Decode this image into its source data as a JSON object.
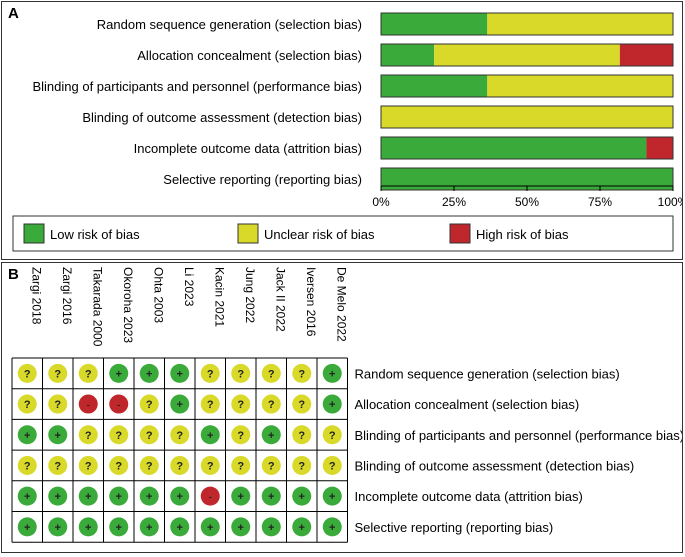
{
  "colors": {
    "low": "#3aaa3a",
    "unclear": "#d9d92a",
    "high": "#c0272d"
  },
  "chart_data": [
    {
      "type": "bar",
      "panel": "A",
      "orientation": "horizontal-stacked",
      "categories": [
        "Random sequence generation (selection bias)",
        "Allocation concealment (selection bias)",
        "Blinding of participants and personnel (performance bias)",
        "Blinding of outcome assessment (detection bias)",
        "Incomplete outcome data (attrition bias)",
        "Selective reporting (reporting bias)"
      ],
      "series": [
        {
          "name": "Low risk of bias",
          "key": "low",
          "values": [
            36.4,
            18.2,
            36.4,
            0,
            90.9,
            100
          ]
        },
        {
          "name": "Unclear risk of bias",
          "key": "unclear",
          "values": [
            63.6,
            63.6,
            63.6,
            100,
            0,
            0
          ]
        },
        {
          "name": "High risk of bias",
          "key": "high",
          "values": [
            0,
            18.2,
            0,
            0,
            9.1,
            0
          ]
        }
      ],
      "xlim": [
        0,
        100
      ],
      "xticks": [
        "0%",
        "25%",
        "50%",
        "75%",
        "100%"
      ],
      "legend": [
        "Low risk of bias",
        "Unclear risk of bias",
        "High risk of bias"
      ],
      "legend_placement": "bottom"
    },
    {
      "type": "table",
      "panel": "B",
      "studies": [
        "Zargi 2018",
        "Zargi 2016",
        "Takarada 2000",
        "Okoroha 2023",
        "Ohta 2003",
        "Li 2023",
        "Kacin 2021",
        "Jung 2022",
        "Jack II 2022",
        "Iversen 2016",
        "De Melo 2022"
      ],
      "domains": [
        "Random sequence generation (selection bias)",
        "Allocation concealment (selection bias)",
        "Blinding of participants and personnel (performance bias)",
        "Blinding of outcome assessment (detection bias)",
        "Incomplete outcome data (attrition bias)",
        "Selective reporting (reporting bias)"
      ],
      "judgements": [
        [
          "?",
          "?",
          "?",
          "+",
          "+",
          "+",
          "?",
          "?",
          "?",
          "?",
          "+"
        ],
        [
          "?",
          "?",
          "-",
          "-",
          "?",
          "+",
          "?",
          "?",
          "?",
          "?",
          "+"
        ],
        [
          "+",
          "+",
          "?",
          "?",
          "?",
          "?",
          "+",
          "?",
          "+",
          "?",
          "?"
        ],
        [
          "?",
          "?",
          "?",
          "?",
          "?",
          "?",
          "?",
          "?",
          "?",
          "?",
          "?"
        ],
        [
          "+",
          "+",
          "+",
          "+",
          "+",
          "+",
          "-",
          "+",
          "+",
          "+",
          "+"
        ],
        [
          "+",
          "+",
          "+",
          "+",
          "+",
          "+",
          "+",
          "+",
          "+",
          "+",
          "+"
        ]
      ]
    }
  ],
  "panel_labels": [
    "A",
    "B"
  ]
}
